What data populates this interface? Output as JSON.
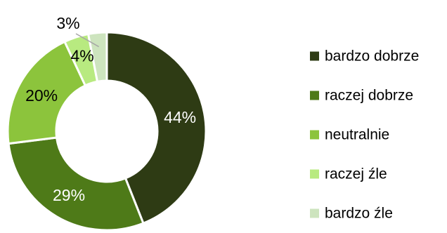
{
  "chart_data": {
    "type": "pie",
    "variant": "donut",
    "title": "",
    "categories": [
      "bardzo dobrze",
      "raczej dobrze",
      "neutralnie",
      "raczej źle",
      "bardzo źle"
    ],
    "values": [
      44,
      29,
      20,
      4,
      3
    ],
    "value_labels": [
      "44%",
      "29%",
      "20%",
      "4%",
      "3%"
    ],
    "colors": [
      "#2E3B14",
      "#4E7A18",
      "#8CC43C",
      "#B8EA80",
      "#CDE4BE"
    ],
    "label_colors": [
      "#FFFFFF",
      "#FFFFFF",
      "#000000",
      "#000000",
      "#000000"
    ],
    "legend_position": "right",
    "grid": false
  }
}
